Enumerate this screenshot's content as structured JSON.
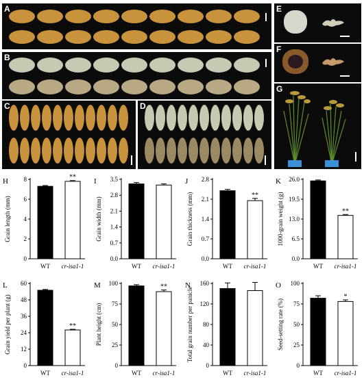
{
  "photos": {
    "A": {
      "label": "A",
      "top_row": "golden rice grains (side view)",
      "bottom_row": "golden rice grains (side view)"
    },
    "B": {
      "label": "B"
    },
    "C": {
      "label": "C"
    },
    "D": {
      "label": "D"
    },
    "E": {
      "label": "E"
    },
    "F": {
      "label": "F"
    },
    "G": {
      "label": "G"
    }
  },
  "colors": {
    "wt_bar": "#000000",
    "mutant_bar": "#ffffff",
    "photo_bg": "#0b0b0b",
    "husk": "#c9933e",
    "brown_rice": "#c7c9b3"
  },
  "chart_data": [
    {
      "panel": "H",
      "type": "bar",
      "categories": [
        "WT",
        "cr-isa1-1"
      ],
      "values": [
        7.3,
        7.8
      ],
      "errors": [
        0.08,
        0.08
      ],
      "ylabel": "Grain length (mm)",
      "ylim": [
        0,
        8
      ],
      "ticks": [
        "0",
        "2",
        "4",
        "6",
        "8"
      ],
      "sig": [
        "",
        "**"
      ]
    },
    {
      "panel": "I",
      "type": "bar",
      "categories": [
        "WT",
        "cr-isa1-1"
      ],
      "values": [
        3.3,
        3.25
      ],
      "errors": [
        0.06,
        0.05
      ],
      "ylabel": "Grain width (mm)",
      "ylim": [
        0,
        3.5
      ],
      "ticks": [
        "0.0",
        "0.7",
        "1.4",
        "2.1",
        "2.8",
        "3.5"
      ],
      "sig": [
        "",
        ""
      ]
    },
    {
      "panel": "J",
      "type": "bar",
      "categories": [
        "WT",
        "cr-isa1-1"
      ],
      "values": [
        2.4,
        2.05
      ],
      "errors": [
        0.05,
        0.08
      ],
      "ylabel": "Grain thickness (mm)",
      "ylim": [
        0,
        2.8
      ],
      "ticks": [
        "0.0",
        "0.7",
        "1.4",
        "2.1",
        "2.8"
      ],
      "sig": [
        "",
        "**"
      ]
    },
    {
      "panel": "K",
      "type": "bar",
      "categories": [
        "WT",
        "cr-isa1-1"
      ],
      "values": [
        25.5,
        14.2
      ],
      "errors": [
        0.3,
        0.3
      ],
      "ylabel": "1000-grain weight (g)",
      "ylim": [
        0,
        26
      ],
      "ticks": [
        "0.0",
        "6.5",
        "13.0",
        "19.5",
        "26.0"
      ],
      "sig": [
        "",
        "**"
      ]
    },
    {
      "panel": "L",
      "type": "bar",
      "categories": [
        "WT",
        "cr-isa1-1"
      ],
      "values": [
        55,
        26
      ],
      "errors": [
        0.6,
        0.5
      ],
      "ylabel": "Grain yield per plant (g)",
      "ylim": [
        0,
        60
      ],
      "ticks": [
        "0",
        "12",
        "24",
        "36",
        "48",
        "60"
      ],
      "sig": [
        "",
        "**"
      ]
    },
    {
      "panel": "M",
      "type": "bar",
      "categories": [
        "WT",
        "cr-isa1-1"
      ],
      "values": [
        97,
        90
      ],
      "errors": [
        1.5,
        2
      ],
      "ylabel": "Plant height (cm)",
      "ylim": [
        0,
        100
      ],
      "ticks": [
        "0",
        "25",
        "50",
        "75",
        "100"
      ],
      "sig": [
        "",
        "**"
      ]
    },
    {
      "panel": "N",
      "type": "bar",
      "categories": [
        "WT",
        "cr-isa1-1"
      ],
      "values": [
        150,
        146
      ],
      "errors": [
        11,
        16
      ],
      "ylabel": "Total grain number per panicle",
      "ylim": [
        0,
        160
      ],
      "ticks": [
        "0",
        "40",
        "80",
        "120",
        "160"
      ],
      "sig": [
        "",
        ""
      ]
    },
    {
      "panel": "O",
      "type": "bar",
      "categories": [
        "WT",
        "cr-isa1-1"
      ],
      "values": [
        82,
        78
      ],
      "errors": [
        3,
        2
      ],
      "ylabel": "Seed-setting rate (%)",
      "ylim": [
        0,
        100
      ],
      "ticks": [
        "0",
        "25",
        "50",
        "75",
        "100"
      ],
      "sig": [
        "",
        "*"
      ]
    }
  ]
}
